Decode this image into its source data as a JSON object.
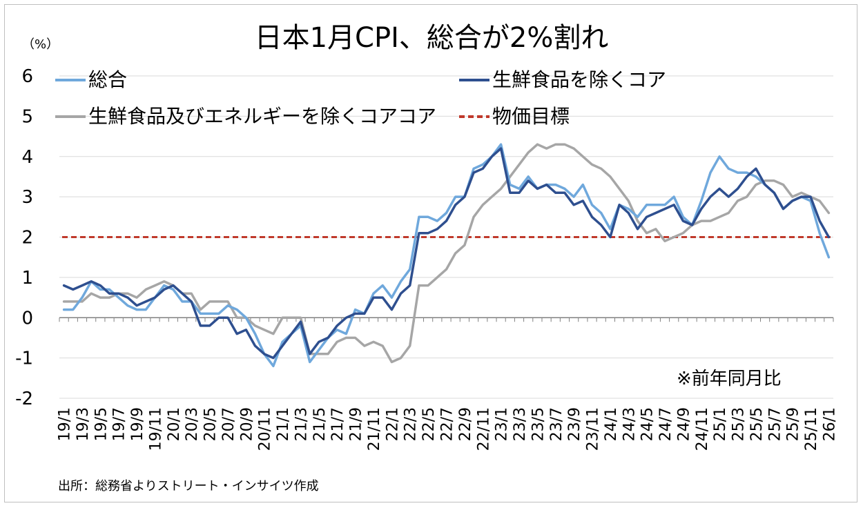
{
  "title": "日本1月CPI、総合が2%割れ",
  "unit_label": "（%）",
  "note": "※前年同月比",
  "source": "出所：総務省よりストリート・インサイツ作成",
  "colors": {
    "headline": "#6fa8dc",
    "core": "#2e4f8f",
    "core_core": "#a6a6a6",
    "target": "#c0392b",
    "grid": "#d9d9d9",
    "axis": "#808080"
  },
  "chart_data": {
    "type": "line",
    "title": "日本1月CPI、総合が2%割れ",
    "ylabel": "（%）",
    "ylim": [
      -2,
      6
    ],
    "yticks": [
      -2,
      -1,
      0,
      1,
      2,
      3,
      4,
      5,
      6
    ],
    "grid": true,
    "legend": "top",
    "x": [
      "19/1",
      "19/2",
      "19/3",
      "19/4",
      "19/5",
      "19/6",
      "19/7",
      "19/8",
      "19/9",
      "19/10",
      "19/11",
      "19/12",
      "20/1",
      "20/2",
      "20/3",
      "20/4",
      "20/5",
      "20/6",
      "20/7",
      "20/8",
      "20/9",
      "20/10",
      "20/11",
      "20/12",
      "21/1",
      "21/2",
      "21/3",
      "21/4",
      "21/5",
      "21/6",
      "21/7",
      "21/8",
      "21/9",
      "21/10",
      "21/11",
      "21/12",
      "22/1",
      "22/2",
      "22/3",
      "22/4",
      "22/5",
      "22/6",
      "22/7",
      "22/8",
      "22/9",
      "22/10",
      "22/11",
      "22/12",
      "23/1",
      "23/2",
      "23/3",
      "23/4",
      "23/5",
      "23/6",
      "23/7",
      "23/8",
      "23/9",
      "23/10",
      "23/11",
      "23/12",
      "24/1",
      "24/2",
      "24/3",
      "24/4",
      "24/5",
      "24/6",
      "24/7",
      "24/8",
      "24/9",
      "24/10",
      "24/11",
      "24/12",
      "25/1",
      "25/2",
      "25/3",
      "25/4",
      "25/5",
      "25/6",
      "25/7",
      "25/8",
      "25/9",
      "25/10",
      "25/11",
      "25/12",
      "26/1"
    ],
    "xticklabels": [
      "19/1",
      "19/3",
      "19/5",
      "19/7",
      "19/9",
      "19/11",
      "20/1",
      "20/3",
      "20/5",
      "20/7",
      "20/9",
      "20/11",
      "21/1",
      "21/3",
      "21/5",
      "21/7",
      "21/9",
      "21/11",
      "22/1",
      "22/3",
      "22/5",
      "22/7",
      "22/9",
      "22/11",
      "23/1",
      "23/3",
      "23/5",
      "23/7",
      "23/9",
      "23/11",
      "24/1",
      "24/3",
      "24/5",
      "24/7",
      "24/9",
      "24/11",
      "25/1",
      "25/3",
      "25/5",
      "25/7",
      "25/9",
      "25/11",
      "26/1"
    ],
    "series": [
      {
        "name": "総合",
        "color": "#6fa8dc",
        "values": [
          0.2,
          0.2,
          0.5,
          0.9,
          0.7,
          0.7,
          0.5,
          0.3,
          0.2,
          0.2,
          0.5,
          0.8,
          0.7,
          0.4,
          0.4,
          0.1,
          0.1,
          0.1,
          0.3,
          0.2,
          0.0,
          -0.4,
          -0.9,
          -1.2,
          -0.6,
          -0.4,
          -0.2,
          -1.1,
          -0.8,
          -0.5,
          -0.3,
          -0.4,
          0.2,
          0.1,
          0.6,
          0.8,
          0.5,
          0.9,
          1.2,
          2.5,
          2.5,
          2.4,
          2.6,
          3.0,
          3.0,
          3.7,
          3.8,
          4.0,
          4.3,
          3.3,
          3.2,
          3.5,
          3.2,
          3.3,
          3.3,
          3.2,
          3.0,
          3.3,
          2.8,
          2.6,
          2.2,
          2.8,
          2.7,
          2.5,
          2.8,
          2.8,
          2.8,
          3.0,
          2.5,
          2.3,
          2.9,
          3.6,
          4.0,
          3.7,
          3.6,
          3.6,
          3.5,
          3.3,
          3.1,
          2.7,
          2.9,
          3.0,
          2.9,
          2.1,
          1.5
        ]
      },
      {
        "name": "生鮮食品を除くコア",
        "color": "#2e4f8f",
        "values": [
          0.8,
          0.7,
          0.8,
          0.9,
          0.8,
          0.6,
          0.6,
          0.5,
          0.3,
          0.4,
          0.5,
          0.7,
          0.8,
          0.6,
          0.4,
          -0.2,
          -0.2,
          0.0,
          0.0,
          -0.4,
          -0.3,
          -0.7,
          -0.9,
          -1.0,
          -0.7,
          -0.4,
          -0.1,
          -0.9,
          -0.6,
          -0.5,
          -0.2,
          0.0,
          0.1,
          0.1,
          0.5,
          0.5,
          0.2,
          0.6,
          0.8,
          2.1,
          2.1,
          2.2,
          2.4,
          2.8,
          3.0,
          3.6,
          3.7,
          4.0,
          4.2,
          3.1,
          3.1,
          3.4,
          3.2,
          3.3,
          3.1,
          3.1,
          2.8,
          2.9,
          2.5,
          2.3,
          2.0,
          2.8,
          2.6,
          2.2,
          2.5,
          2.6,
          2.7,
          2.8,
          2.4,
          2.3,
          2.7,
          3.0,
          3.2,
          3.0,
          3.2,
          3.5,
          3.7,
          3.3,
          3.1,
          2.7,
          2.9,
          3.0,
          3.0,
          2.4,
          2.0
        ]
      },
      {
        "name": "生鮮食品及びエネルギーを除くコアコア",
        "color": "#a6a6a6",
        "values": [
          0.4,
          0.4,
          0.4,
          0.6,
          0.5,
          0.5,
          0.6,
          0.6,
          0.5,
          0.7,
          0.8,
          0.9,
          0.8,
          0.6,
          0.6,
          0.2,
          0.4,
          0.4,
          0.4,
          0.0,
          0.0,
          -0.2,
          -0.3,
          -0.4,
          0.0,
          0.0,
          0.0,
          -0.9,
          -0.9,
          -0.9,
          -0.6,
          -0.5,
          -0.5,
          -0.7,
          -0.6,
          -0.7,
          -1.1,
          -1.0,
          -0.7,
          0.8,
          0.8,
          1.0,
          1.2,
          1.6,
          1.8,
          2.5,
          2.8,
          3.0,
          3.2,
          3.5,
          3.8,
          4.1,
          4.3,
          4.2,
          4.3,
          4.3,
          4.2,
          4.0,
          3.8,
          3.7,
          3.5,
          3.2,
          2.9,
          2.4,
          2.1,
          2.2,
          1.9,
          2.0,
          2.1,
          2.3,
          2.4,
          2.4,
          2.5,
          2.6,
          2.9,
          3.0,
          3.3,
          3.4,
          3.4,
          3.3,
          3.0,
          3.1,
          3.0,
          2.9,
          2.6
        ]
      },
      {
        "name": "物価目標",
        "color": "#c0392b",
        "style": "dashed",
        "constant": 2
      }
    ]
  }
}
